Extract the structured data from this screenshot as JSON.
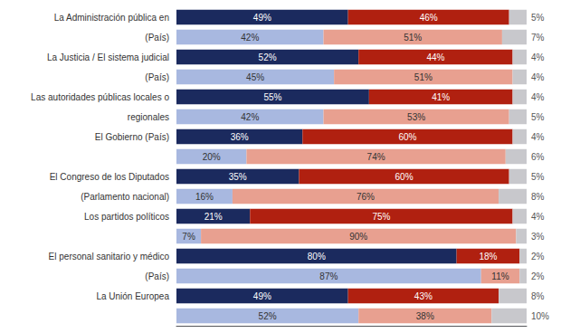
{
  "chart_data": {
    "type": "bar",
    "orientation": "horizontal",
    "stacked": true,
    "data_labels": true,
    "grid": false,
    "tick_labels": "y",
    "categories": [
      "La Administración pública en",
      "(País)",
      "La Justicia / El sistema judicial",
      "(País)",
      "Las autoridades públicas locales o",
      "regionales",
      "El Gobierno (País)",
      null,
      "El Congreso de los Diputados",
      "(Parlamento nacional)",
      "Los partidos políticos",
      null,
      "El personal sanitario y médico",
      "(País)",
      "La Unión Europea",
      null
    ],
    "xlim": [
      0,
      100
    ],
    "series": [
      {
        "colors": [
          "#1b2a5e",
          "#a8b8e0",
          "#1b2a5e",
          "#a8b8e0",
          "#1b2a5e",
          "#a8b8e0",
          "#1b2a5e",
          "#a8b8e0",
          "#1b2a5e",
          "#a8b8e0",
          "#1b2a5e",
          "#a8b8e0",
          "#1b2a5e",
          "#a8b8e0",
          "#1b2a5e",
          "#a8b8e0"
        ],
        "values": [
          49,
          42,
          52,
          45,
          55,
          42,
          36,
          20,
          35,
          16,
          21,
          7,
          80,
          87,
          49,
          52
        ],
        "value_labels": [
          "49%",
          "42%",
          "52%",
          "45%",
          "55%",
          "42%",
          "36%",
          "20%",
          "35%",
          "16%",
          "21%",
          "7%",
          "80%",
          "87%",
          "49%",
          "52%"
        ]
      },
      {
        "colors": [
          "#b02010",
          "#e8a090",
          "#b02010",
          "#e8a090",
          "#b02010",
          "#e8a090",
          "#b02010",
          "#e8a090",
          "#b02010",
          "#e8a090",
          "#b02010",
          "#e8a090",
          "#b02010",
          "#e8a090",
          "#b02010",
          "#e8a090"
        ],
        "values": [
          46,
          51,
          44,
          51,
          41,
          53,
          60,
          74,
          60,
          76,
          75,
          90,
          18,
          11,
          43,
          38
        ],
        "value_labels": [
          "46%",
          "51%",
          "44%",
          "51%",
          "41%",
          "53%",
          "60%",
          "74%",
          "60%",
          "76%",
          "75%",
          "90%",
          "18%",
          "11%",
          "43%",
          "38%"
        ]
      },
      {
        "colors": [
          "#c8c8cc",
          "#c8c8cc",
          "#c8c8cc",
          "#c8c8cc",
          "#c8c8cc",
          "#c8c8cc",
          "#c8c8cc",
          "#c8c8cc",
          "#c8c8cc",
          "#c8c8cc",
          "#c8c8cc",
          "#c8c8cc",
          "#c8c8cc",
          "#c8c8cc",
          "#c8c8cc",
          "#c8c8cc"
        ],
        "values": [
          5,
          7,
          4,
          4,
          4,
          5,
          4,
          6,
          5,
          8,
          4,
          3,
          2,
          2,
          8,
          10
        ],
        "value_labels": [
          "5%",
          "7%",
          "4%",
          "4%",
          "4%",
          "5%",
          "4%",
          "6%",
          "5%",
          "8%",
          "4%",
          "3%",
          "2%",
          "2%",
          "8%",
          "10%"
        ]
      }
    ]
  }
}
